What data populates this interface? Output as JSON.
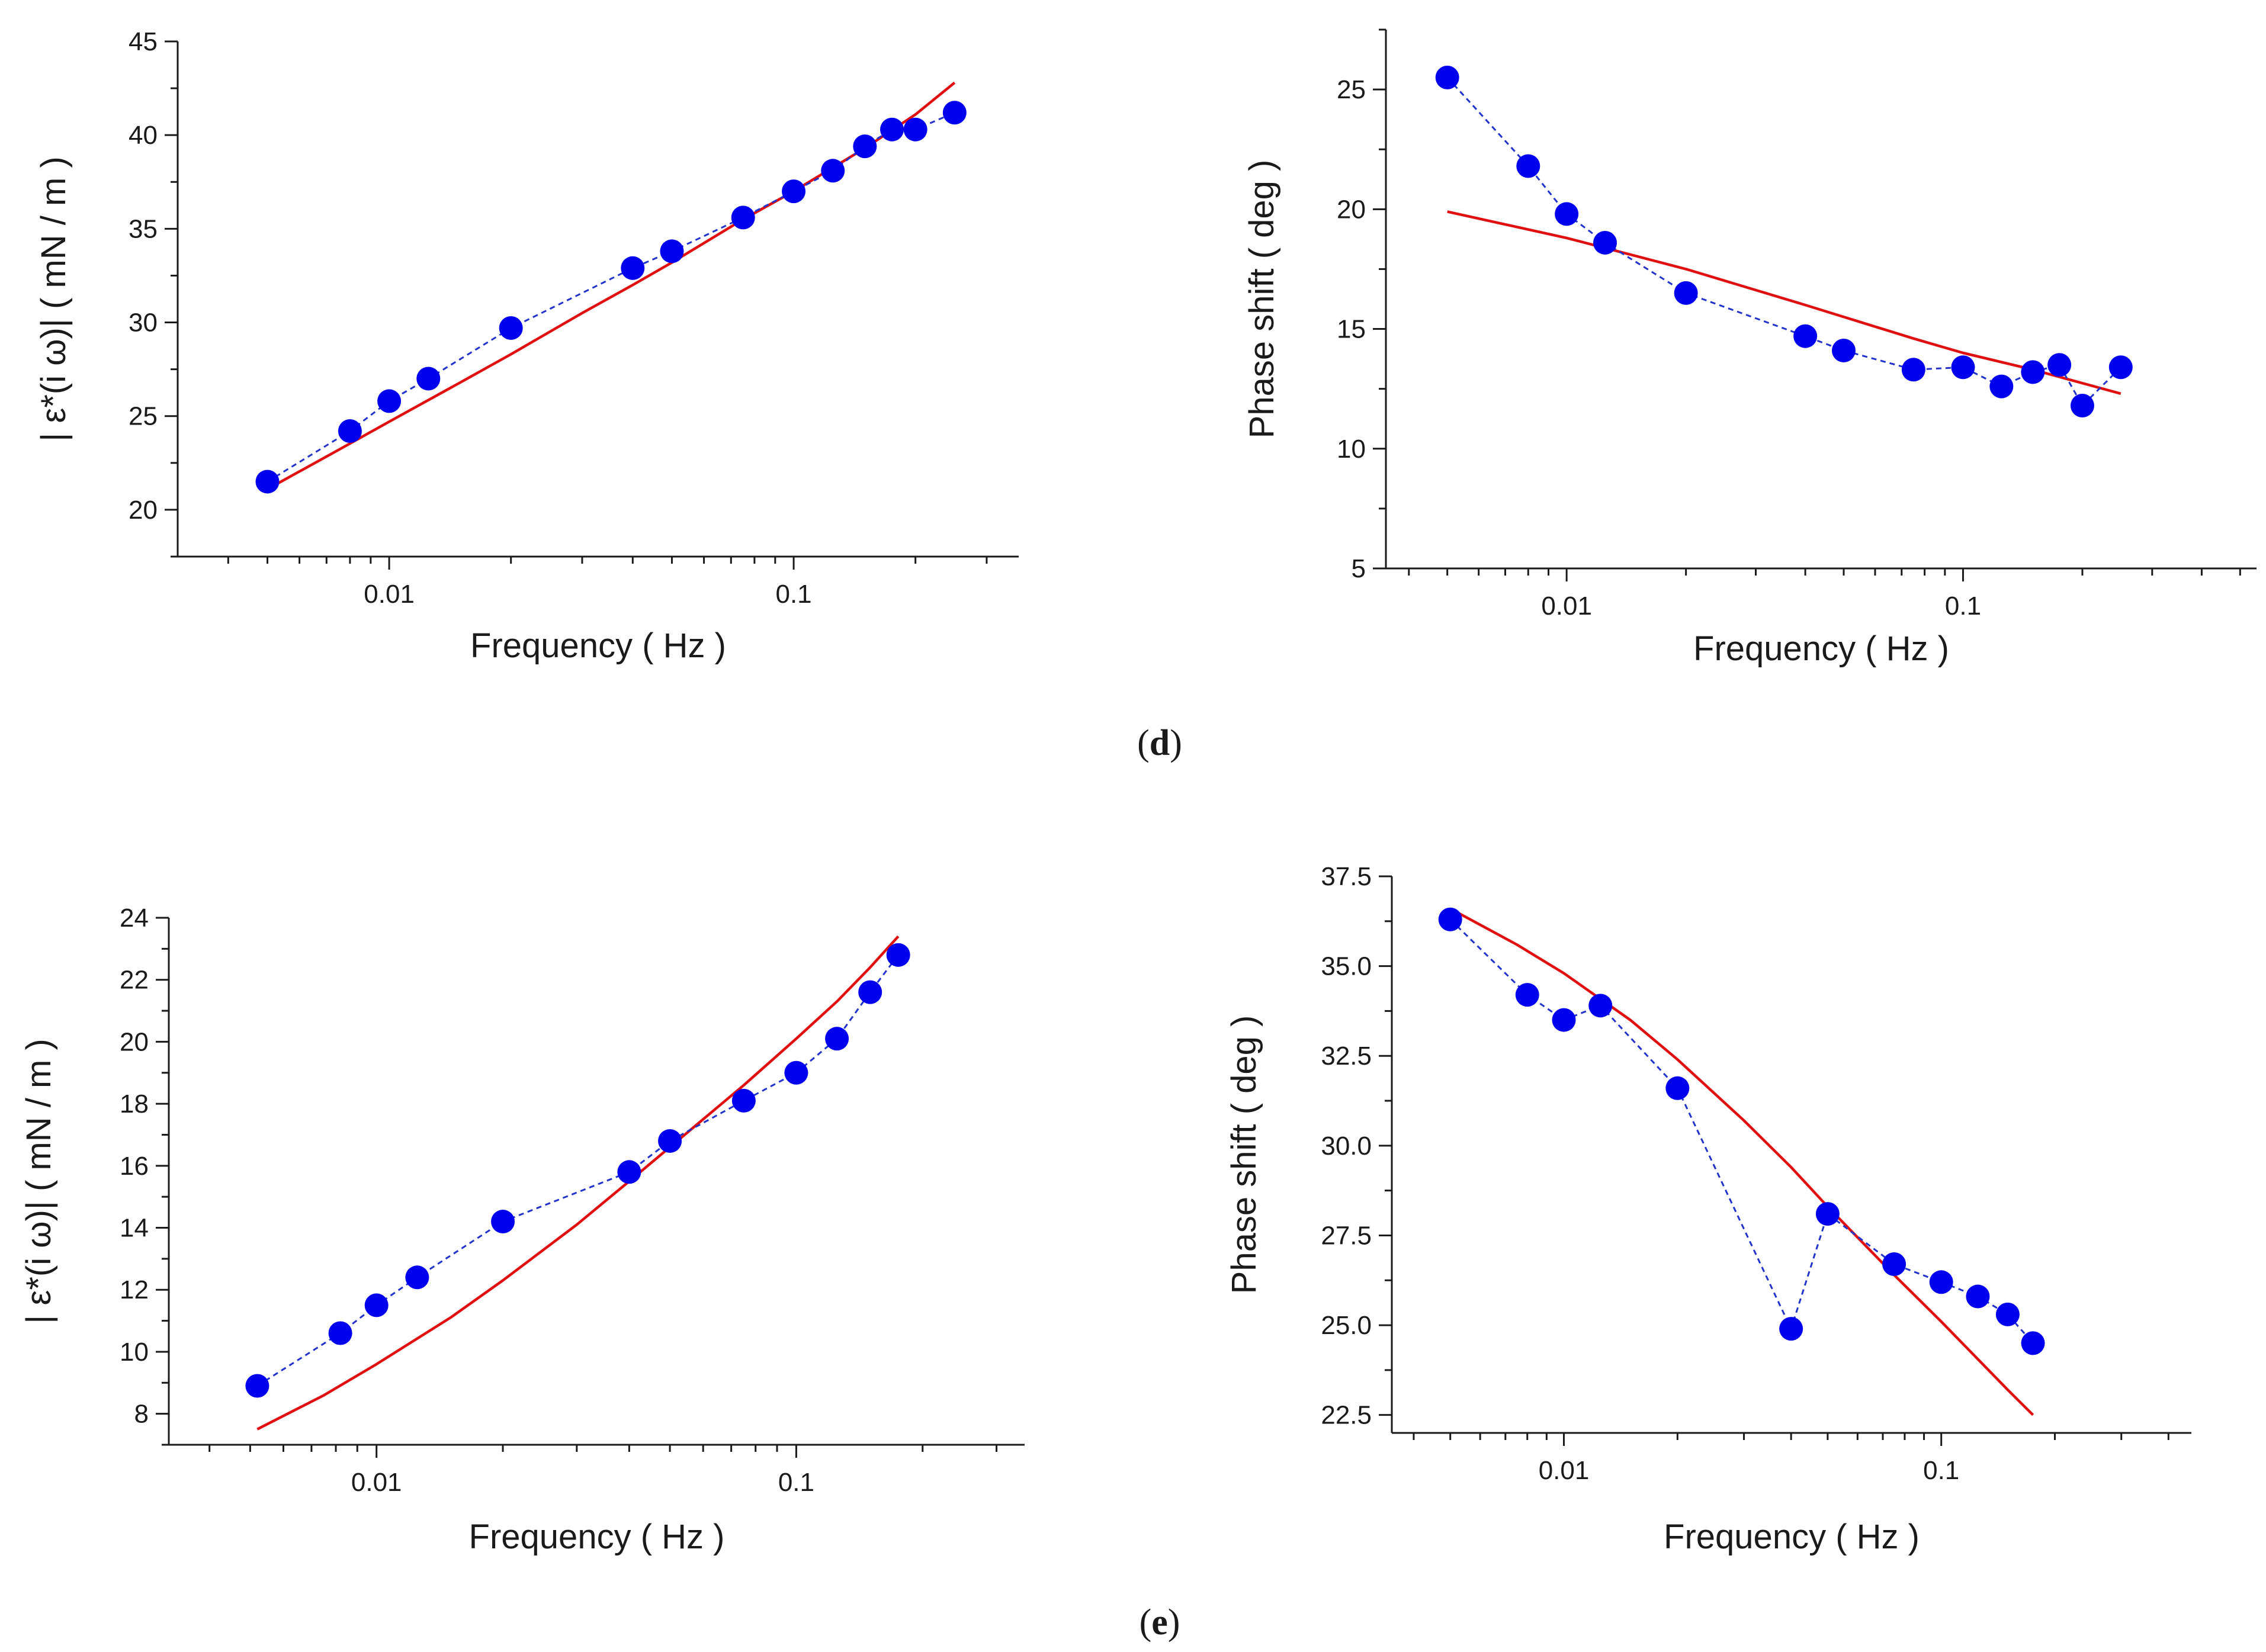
{
  "panel_labels": {
    "d": {
      "open": "(",
      "letter": "d",
      "close": ")"
    },
    "e": {
      "open": "(",
      "letter": "e",
      "close": ")"
    }
  },
  "colors": {
    "points": "#0000ee",
    "connector": "#2233cc",
    "fit": "#e01010",
    "axis": "#1a1a1a"
  },
  "chart_data": [
    {
      "id": "d-left",
      "type": "scatter",
      "title": "",
      "xlabel": "Frequency ( Hz )",
      "ylabel": "| ε*(i ω)| ( mN / m )",
      "xscale": "log",
      "xlim": [
        0.003,
        0.36
      ],
      "ylim": [
        17.5,
        45
      ],
      "xticks": [
        0.01,
        0.1
      ],
      "xtick_labels": [
        "0.01",
        "0.1"
      ],
      "yticks": [
        20,
        25,
        30,
        35,
        40,
        45
      ],
      "ytick_labels": [
        "20",
        "25",
        "30",
        "35",
        "40",
        "45"
      ],
      "series": [
        {
          "name": "measured",
          "style": "markers+dashed-line",
          "x": [
            0.005,
            0.008,
            0.01,
            0.0125,
            0.02,
            0.04,
            0.05,
            0.075,
            0.1,
            0.125,
            0.15,
            0.175,
            0.2,
            0.25
          ],
          "y": [
            21.5,
            24.2,
            25.8,
            27.0,
            29.7,
            32.9,
            33.8,
            35.6,
            37.0,
            38.1,
            39.4,
            40.3,
            40.3,
            41.2
          ]
        },
        {
          "name": "fit",
          "style": "line",
          "x": [
            0.005,
            0.0075,
            0.01,
            0.015,
            0.02,
            0.03,
            0.04,
            0.05,
            0.075,
            0.1,
            0.15,
            0.2,
            0.25
          ],
          "y": [
            21.1,
            23.2,
            24.7,
            26.8,
            28.3,
            30.5,
            32.0,
            33.2,
            35.5,
            37.0,
            39.3,
            41.1,
            42.8
          ]
        }
      ]
    },
    {
      "id": "d-right",
      "type": "scatter",
      "title": "",
      "xlabel": "Frequency ( Hz )",
      "ylabel": "Phase shift ( deg )",
      "xscale": "log",
      "xlim": [
        0.0035,
        0.55
      ],
      "ylim": [
        5,
        27.5
      ],
      "xticks": [
        0.01,
        0.1
      ],
      "xtick_labels": [
        "0.01",
        "0.1"
      ],
      "yticks": [
        5,
        10,
        15,
        20,
        25
      ],
      "ytick_labels": [
        "5",
        "10",
        "15",
        "20",
        "25"
      ],
      "series": [
        {
          "name": "measured",
          "style": "markers+dashed-line",
          "x": [
            0.005,
            0.008,
            0.01,
            0.0125,
            0.02,
            0.04,
            0.05,
            0.075,
            0.1,
            0.125,
            0.15,
            0.175,
            0.2,
            0.25
          ],
          "y": [
            25.5,
            21.8,
            19.8,
            18.6,
            16.5,
            14.7,
            14.1,
            13.3,
            13.4,
            12.6,
            13.2,
            13.5,
            11.8,
            13.4
          ]
        },
        {
          "name": "fit",
          "style": "line",
          "x": [
            0.005,
            0.01,
            0.02,
            0.04,
            0.075,
            0.1,
            0.15,
            0.25
          ],
          "y": [
            19.9,
            18.8,
            17.5,
            16.0,
            14.6,
            14.0,
            13.3,
            12.3
          ]
        }
      ]
    },
    {
      "id": "e-left",
      "type": "scatter",
      "title": "",
      "xlabel": "Frequency ( Hz )",
      "ylabel": "| ε*(i ω)| ( mN / m )",
      "xscale": "log",
      "xlim": [
        0.0032,
        0.35
      ],
      "ylim": [
        7,
        24
      ],
      "xticks": [
        0.01,
        0.1
      ],
      "xtick_labels": [
        "0.01",
        "0.1"
      ],
      "yticks": [
        8,
        10,
        12,
        14,
        16,
        18,
        20,
        22,
        24
      ],
      "ytick_labels": [
        "8",
        "10",
        "12",
        "14",
        "16",
        "18",
        "20",
        "22",
        "24"
      ],
      "series": [
        {
          "name": "measured",
          "style": "markers+dashed-line",
          "x": [
            0.0052,
            0.0082,
            0.01,
            0.0125,
            0.02,
            0.04,
            0.05,
            0.075,
            0.1,
            0.125,
            0.15,
            0.175
          ],
          "y": [
            8.9,
            10.6,
            11.5,
            12.4,
            14.2,
            15.8,
            16.8,
            18.1,
            19.0,
            20.1,
            21.6,
            22.8
          ]
        },
        {
          "name": "fit",
          "style": "line",
          "x": [
            0.0052,
            0.0075,
            0.01,
            0.015,
            0.02,
            0.03,
            0.04,
            0.05,
            0.075,
            0.1,
            0.125,
            0.15,
            0.175
          ],
          "y": [
            7.5,
            8.6,
            9.6,
            11.1,
            12.3,
            14.1,
            15.5,
            16.6,
            18.6,
            20.1,
            21.3,
            22.4,
            23.4
          ]
        }
      ]
    },
    {
      "id": "e-right",
      "type": "scatter",
      "title": "",
      "xlabel": "Frequency ( Hz )",
      "ylabel": "Phase shift ( deg )",
      "xscale": "log",
      "xlim": [
        0.0035,
        0.46
      ],
      "ylim": [
        22,
        37.5
      ],
      "xticks": [
        0.01,
        0.1
      ],
      "xtick_labels": [
        "0.01",
        "0.1"
      ],
      "yticks": [
        22.5,
        25.0,
        27.5,
        30.0,
        32.5,
        35.0,
        37.5
      ],
      "ytick_labels": [
        "22.5",
        "25.0",
        "27.5",
        "30.0",
        "32.5",
        "35.0",
        "37.5"
      ],
      "series": [
        {
          "name": "measured",
          "style": "markers+dashed-line",
          "x": [
            0.005,
            0.008,
            0.01,
            0.0125,
            0.02,
            0.04,
            0.05,
            0.075,
            0.1,
            0.125,
            0.15,
            0.175
          ],
          "y": [
            36.3,
            34.2,
            33.5,
            33.9,
            31.6,
            24.9,
            28.1,
            26.7,
            26.2,
            25.8,
            25.3,
            24.5
          ]
        },
        {
          "name": "fit",
          "style": "line",
          "x": [
            0.005,
            0.0075,
            0.01,
            0.015,
            0.02,
            0.03,
            0.04,
            0.05,
            0.075,
            0.1,
            0.15,
            0.175
          ],
          "y": [
            36.6,
            35.6,
            34.8,
            33.5,
            32.4,
            30.7,
            29.4,
            28.3,
            26.4,
            25.1,
            23.2,
            22.5
          ]
        }
      ]
    }
  ]
}
